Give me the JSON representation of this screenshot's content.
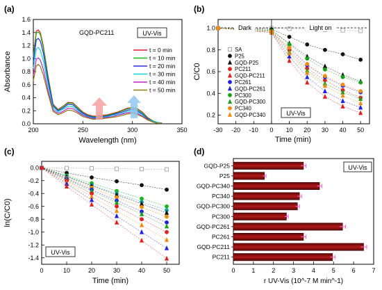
{
  "figure": {
    "panel_labels": [
      "(a)",
      "(b)",
      "(c)",
      "(d)"
    ]
  },
  "chart_data": [
    {
      "panel": "(a)",
      "type": "line",
      "xlabel": "Wavelength (nm)",
      "ylabel": "Absorbance",
      "xlim": [
        200,
        350
      ],
      "ylim": [
        0.0,
        1.6
      ],
      "xticks": [
        200,
        250,
        300,
        350
      ],
      "yticks": [
        0.0,
        0.2,
        0.4,
        0.6,
        0.8,
        1.0,
        1.2,
        1.4,
        1.6
      ],
      "inset_title": "GQD-PC211",
      "badge": "UV-Vis",
      "legend_position": "right",
      "x": [
        200,
        203,
        205,
        207,
        210,
        215,
        220,
        225,
        230,
        235,
        240,
        245,
        250,
        255,
        260,
        265,
        270,
        275,
        280,
        285,
        290,
        295,
        300,
        305,
        310,
        315,
        320,
        325,
        330
      ],
      "series": [
        {
          "name": "t = 0 min",
          "color": "#e0202a",
          "values": [
            1.05,
            1.42,
            1.44,
            1.4,
            1.2,
            0.72,
            0.3,
            0.22,
            0.27,
            0.33,
            0.32,
            0.25,
            0.18,
            0.14,
            0.12,
            0.12,
            0.13,
            0.14,
            0.16,
            0.18,
            0.21,
            0.24,
            0.25,
            0.23,
            0.18,
            0.1,
            0.05,
            0.02,
            0.01
          ]
        },
        {
          "name": "t = 10 min",
          "color": "#18b418",
          "values": [
            1.02,
            1.39,
            1.41,
            1.37,
            1.17,
            0.7,
            0.29,
            0.21,
            0.26,
            0.32,
            0.31,
            0.24,
            0.17,
            0.13,
            0.11,
            0.11,
            0.12,
            0.13,
            0.15,
            0.17,
            0.2,
            0.23,
            0.24,
            0.22,
            0.17,
            0.09,
            0.05,
            0.02,
            0.01
          ]
        },
        {
          "name": "t = 20 min",
          "color": "#2a2ae0",
          "values": [
            0.95,
            1.29,
            1.31,
            1.27,
            1.09,
            0.65,
            0.27,
            0.2,
            0.24,
            0.3,
            0.29,
            0.22,
            0.16,
            0.12,
            0.1,
            0.1,
            0.11,
            0.12,
            0.14,
            0.16,
            0.18,
            0.21,
            0.22,
            0.2,
            0.15,
            0.08,
            0.04,
            0.02,
            0.01
          ]
        },
        {
          "name": "t = 30 min",
          "color": "#10d0d8",
          "values": [
            0.85,
            1.15,
            1.17,
            1.13,
            0.97,
            0.58,
            0.24,
            0.18,
            0.22,
            0.27,
            0.26,
            0.2,
            0.14,
            0.11,
            0.09,
            0.09,
            0.1,
            0.11,
            0.13,
            0.14,
            0.16,
            0.19,
            0.2,
            0.18,
            0.14,
            0.07,
            0.04,
            0.02,
            0.01
          ]
        },
        {
          "name": "t = 40 min",
          "color": "#c020c8",
          "values": [
            0.74,
            0.99,
            1.01,
            0.98,
            0.84,
            0.5,
            0.21,
            0.16,
            0.19,
            0.24,
            0.23,
            0.18,
            0.13,
            0.1,
            0.08,
            0.08,
            0.09,
            0.1,
            0.11,
            0.13,
            0.15,
            0.17,
            0.18,
            0.16,
            0.12,
            0.07,
            0.03,
            0.01,
            0.01
          ]
        },
        {
          "name": "t = 50 min",
          "color": "#8a7a10",
          "values": [
            0.66,
            0.89,
            0.91,
            0.88,
            0.75,
            0.45,
            0.19,
            0.14,
            0.17,
            0.21,
            0.2,
            0.16,
            0.11,
            0.09,
            0.07,
            0.07,
            0.08,
            0.09,
            0.1,
            0.11,
            0.13,
            0.15,
            0.16,
            0.14,
            0.11,
            0.06,
            0.03,
            0.01,
            0.01
          ]
        }
      ]
    },
    {
      "panel": "(b)",
      "type": "line",
      "xlabel": "Time (min)",
      "ylabel": "C/C0",
      "xlim": [
        -30,
        55
      ],
      "ylim": [
        0.12,
        1.08
      ],
      "xticks": [
        -30,
        -20,
        -10,
        0,
        10,
        20,
        30,
        40,
        50
      ],
      "yticks": [
        0.2,
        0.4,
        0.6,
        0.8,
        1.0
      ],
      "annotations": [
        "Dark",
        "Light on"
      ],
      "badge": "UV-Vis",
      "legend_position": "left",
      "x": [
        -30,
        0,
        10,
        20,
        30,
        40,
        50
      ],
      "series": [
        {
          "name": "SA",
          "color": "#9a9a9a",
          "marker": "square",
          "values": [
            1.0,
            1.0,
            0.995,
            0.99,
            0.985,
            0.98,
            0.975
          ]
        },
        {
          "name": "P25",
          "color": "#111111",
          "marker": "circle",
          "values": [
            1.0,
            0.99,
            0.92,
            0.85,
            0.8,
            0.76,
            0.71
          ]
        },
        {
          "name": "GQD-P25",
          "color": "#111111",
          "marker": "triangle",
          "values": [
            1.0,
            0.98,
            0.86,
            0.74,
            0.65,
            0.57,
            0.51
          ]
        },
        {
          "name": "PC211",
          "color": "#e02020",
          "marker": "circle",
          "values": [
            1.0,
            0.97,
            0.8,
            0.63,
            0.52,
            0.43,
            0.36
          ]
        },
        {
          "name": "GQD-PC211",
          "color": "#e02020",
          "marker": "triangle",
          "values": [
            1.0,
            0.96,
            0.7,
            0.5,
            0.37,
            0.28,
            0.22
          ]
        },
        {
          "name": "PC261",
          "color": "#2020e0",
          "marker": "circle",
          "values": [
            1.0,
            0.97,
            0.82,
            0.66,
            0.55,
            0.47,
            0.41
          ]
        },
        {
          "name": "GQD-PC261",
          "color": "#2020e0",
          "marker": "triangle",
          "values": [
            1.0,
            0.96,
            0.74,
            0.55,
            0.42,
            0.33,
            0.27
          ]
        },
        {
          "name": "PC300",
          "color": "#18a018",
          "marker": "circle",
          "values": [
            1.0,
            0.98,
            0.85,
            0.72,
            0.62,
            0.55,
            0.5
          ]
        },
        {
          "name": "GQD-PC300",
          "color": "#18a018",
          "marker": "triangle",
          "values": [
            1.0,
            0.97,
            0.78,
            0.61,
            0.49,
            0.41,
            0.35
          ]
        },
        {
          "name": "PC340",
          "color": "#f08a10",
          "marker": "circle",
          "values": [
            1.0,
            0.97,
            0.82,
            0.67,
            0.56,
            0.48,
            0.42
          ]
        },
        {
          "name": "GQD-PC340",
          "color": "#f08a10",
          "marker": "triangle",
          "values": [
            1.0,
            0.96,
            0.77,
            0.59,
            0.47,
            0.38,
            0.31
          ]
        }
      ]
    },
    {
      "panel": "(c)",
      "type": "scatter",
      "xlabel": "Time (min)",
      "ylabel": "ln(C/C0)",
      "xlim": [
        0,
        55
      ],
      "ylim": [
        -1.5,
        0.1
      ],
      "xticks": [
        0,
        10,
        20,
        30,
        40,
        50
      ],
      "yticks": [
        0.0,
        -0.2,
        -0.4,
        -0.6,
        -0.8,
        -1.0,
        -1.2,
        -1.4
      ],
      "badge": "UV-Vis",
      "legend_position": "none",
      "x": [
        0,
        10,
        20,
        30,
        40,
        50
      ],
      "series": [
        {
          "color": "#9a9a9a",
          "marker": "square",
          "fill": "#ffffff",
          "values": [
            0,
            -0.005,
            -0.01,
            -0.015,
            -0.02,
            -0.025
          ]
        },
        {
          "color": "#111111",
          "marker": "circle",
          "fill": "#111111",
          "values": [
            0,
            -0.08,
            -0.15,
            -0.21,
            -0.27,
            -0.34
          ]
        },
        {
          "color": "#18b418",
          "marker": "circle",
          "fill": "#18b418",
          "values": [
            0,
            -0.12,
            -0.24,
            -0.36,
            -0.48,
            -0.6
          ]
        },
        {
          "color": "#18a0a0",
          "marker": "circle",
          "fill": "#18a0a0",
          "values": [
            0,
            -0.13,
            -0.27,
            -0.4,
            -0.53,
            -0.66
          ]
        },
        {
          "color": "#111111",
          "marker": "triangle",
          "fill": "#111111",
          "values": [
            0,
            -0.14,
            -0.28,
            -0.42,
            -0.56,
            -0.7
          ]
        },
        {
          "color": "#f08a10",
          "marker": "circle",
          "fill": "#f08a10",
          "values": [
            0,
            -0.16,
            -0.31,
            -0.46,
            -0.61,
            -0.76
          ]
        },
        {
          "color": "#2020e0",
          "marker": "circle",
          "fill": "#2020e0",
          "values": [
            0,
            -0.17,
            -0.34,
            -0.51,
            -0.68,
            -0.85
          ]
        },
        {
          "color": "#18a018",
          "marker": "triangle",
          "fill": "#18a018",
          "values": [
            0,
            -0.18,
            -0.36,
            -0.54,
            -0.72,
            -0.91
          ]
        },
        {
          "color": "#e02020",
          "marker": "circle",
          "fill": "#e02020",
          "values": [
            0,
            -0.2,
            -0.4,
            -0.6,
            -0.8,
            -1.0
          ]
        },
        {
          "color": "#f08a10",
          "marker": "triangle",
          "fill": "#f08a10",
          "values": [
            0,
            -0.23,
            -0.45,
            -0.67,
            -0.89,
            -1.12
          ]
        },
        {
          "color": "#2020e0",
          "marker": "triangle",
          "fill": "#2020e0",
          "values": [
            0,
            -0.25,
            -0.5,
            -0.75,
            -1.0,
            -1.25
          ]
        },
        {
          "color": "#e02020",
          "marker": "triangle",
          "fill": "#e02020",
          "values": [
            0,
            -0.29,
            -0.57,
            -0.85,
            -1.13,
            -1.41
          ]
        }
      ]
    },
    {
      "panel": "(d)",
      "type": "bar",
      "orientation": "horizontal",
      "xlabel": "r UV-Vis (10^-7 M min^-1)",
      "xlim": [
        0,
        7
      ],
      "xticks": [
        0,
        1,
        2,
        3,
        4,
        5,
        6,
        7
      ],
      "badge": "UV-Vis",
      "bar_color": "#b01818",
      "error_color": "#ff66cc",
      "categories": [
        "GQD-P25",
        "P25",
        "GQD-PC340",
        "PC340",
        "GQD-PC300",
        "PC300",
        "GQD-PC261",
        "PC261",
        "GQD-PC211",
        "PC211"
      ],
      "values": [
        3.5,
        1.55,
        4.3,
        3.3,
        3.2,
        2.65,
        5.45,
        3.5,
        6.5,
        4.95
      ],
      "errors": [
        0.12,
        0.08,
        0.12,
        0.1,
        0.1,
        0.09,
        0.15,
        0.12,
        0.15,
        0.12
      ]
    }
  ]
}
